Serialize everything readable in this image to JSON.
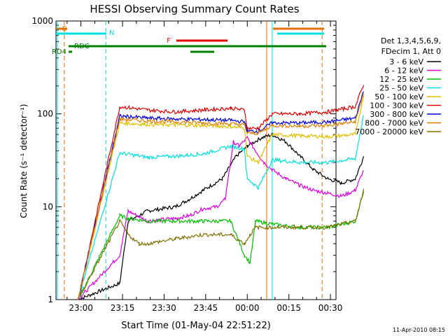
{
  "chart_data": {
    "type": "line",
    "title": "HESSI Observing Summary Count Rates",
    "xlabel": "Start Time (01-May-04 22:51:22)",
    "ylabel": "Count Rate (s⁻¹ detector⁻¹)",
    "y_scale": "log",
    "ylim": [
      1,
      1000
    ],
    "xlim": [
      "22:51",
      "00:32"
    ],
    "x_ticks": [
      "23:00",
      "23:15",
      "23:30",
      "23:45",
      "00:00",
      "00:15",
      "00:30"
    ],
    "y_ticks": [
      "1",
      "10",
      "100",
      "1000"
    ],
    "footer": "11-Apr-2010 08:15",
    "legend": {
      "header": [
        "Det 1,3,4,5,6,9,",
        "FDecim 1, Att 0"
      ],
      "placement": "right"
    },
    "series": [
      {
        "name": "3 - 6 keV",
        "color": "#000000",
        "points": [
          [
            0,
            1
          ],
          [
            15,
            1.5
          ],
          [
            18,
            7
          ],
          [
            25,
            9
          ],
          [
            35,
            10
          ],
          [
            40,
            12
          ],
          [
            45,
            15
          ],
          [
            52,
            20
          ],
          [
            57,
            35
          ],
          [
            61,
            45
          ],
          [
            66,
            55
          ],
          [
            70,
            60
          ],
          [
            75,
            50
          ],
          [
            80,
            35
          ],
          [
            85,
            25
          ],
          [
            90,
            20
          ],
          [
            95,
            18
          ],
          [
            100,
            20
          ],
          [
            103,
            35
          ]
        ]
      },
      {
        "name": "6 - 12 keV",
        "color": "#e000e0",
        "points": [
          [
            0,
            1
          ],
          [
            15,
            3
          ],
          [
            18,
            9
          ],
          [
            25,
            7
          ],
          [
            35,
            7.5
          ],
          [
            40,
            8
          ],
          [
            45,
            9.5
          ],
          [
            50,
            10
          ],
          [
            53,
            12
          ],
          [
            56,
            50
          ],
          [
            58,
            45
          ],
          [
            61,
            55
          ],
          [
            64,
            40
          ],
          [
            67,
            30
          ],
          [
            70,
            25
          ],
          [
            75,
            20
          ],
          [
            80,
            17
          ],
          [
            85,
            15
          ],
          [
            90,
            14
          ],
          [
            95,
            13
          ],
          [
            100,
            15
          ],
          [
            103,
            25
          ]
        ]
      },
      {
        "name": "12 - 25 keV",
        "color": "#00c000",
        "points": [
          [
            0,
            1
          ],
          [
            15,
            8
          ],
          [
            18,
            7.5
          ],
          [
            25,
            7
          ],
          [
            35,
            7
          ],
          [
            45,
            7
          ],
          [
            55,
            7
          ],
          [
            60,
            3
          ],
          [
            62,
            2.5
          ],
          [
            64,
            7
          ],
          [
            70,
            6.5
          ],
          [
            80,
            6
          ],
          [
            90,
            6
          ],
          [
            100,
            7
          ],
          [
            103,
            15
          ]
        ]
      },
      {
        "name": "25 - 50 keV",
        "color": "#00e0e0",
        "points": [
          [
            0,
            1
          ],
          [
            15,
            38
          ],
          [
            25,
            34
          ],
          [
            35,
            35
          ],
          [
            45,
            37
          ],
          [
            55,
            45
          ],
          [
            60,
            42
          ],
          [
            61,
            20
          ],
          [
            63,
            18
          ],
          [
            65,
            16
          ],
          [
            70,
            32
          ],
          [
            80,
            30
          ],
          [
            90,
            30
          ],
          [
            100,
            33
          ],
          [
            103,
            100
          ]
        ]
      },
      {
        "name": "50 - 100 keV",
        "color": "#e0c000",
        "points": [
          [
            0,
            1
          ],
          [
            15,
            80
          ],
          [
            25,
            77
          ],
          [
            35,
            76
          ],
          [
            45,
            75
          ],
          [
            55,
            73
          ],
          [
            60,
            70
          ],
          [
            61,
            35
          ],
          [
            65,
            30
          ],
          [
            70,
            60
          ],
          [
            80,
            58
          ],
          [
            90,
            57
          ],
          [
            100,
            60
          ],
          [
            103,
            160
          ]
        ]
      },
      {
        "name": "100 - 300 keV",
        "color": "#e00000",
        "points": [
          [
            0,
            1
          ],
          [
            15,
            120
          ],
          [
            25,
            110
          ],
          [
            35,
            105
          ],
          [
            45,
            110
          ],
          [
            55,
            115
          ],
          [
            60,
            110
          ],
          [
            61,
            70
          ],
          [
            65,
            70
          ],
          [
            70,
            100
          ],
          [
            80,
            100
          ],
          [
            90,
            105
          ],
          [
            100,
            120
          ],
          [
            103,
            210
          ]
        ]
      },
      {
        "name": "300 - 800 keV",
        "color": "#0000e0",
        "points": [
          [
            0,
            1
          ],
          [
            15,
            95
          ],
          [
            25,
            90
          ],
          [
            35,
            88
          ],
          [
            45,
            87
          ],
          [
            55,
            85
          ],
          [
            60,
            82
          ],
          [
            61,
            65
          ],
          [
            65,
            65
          ],
          [
            70,
            80
          ],
          [
            80,
            80
          ],
          [
            90,
            82
          ],
          [
            100,
            90
          ],
          [
            103,
            180
          ]
        ]
      },
      {
        "name": "800 - 7000 keV",
        "color": "#e08000",
        "points": [
          [
            0,
            1
          ],
          [
            15,
            88
          ],
          [
            25,
            84
          ],
          [
            35,
            82
          ],
          [
            45,
            80
          ],
          [
            55,
            78
          ],
          [
            60,
            76
          ],
          [
            61,
            62
          ],
          [
            65,
            62
          ],
          [
            70,
            75
          ],
          [
            80,
            74
          ],
          [
            90,
            75
          ],
          [
            100,
            82
          ],
          [
            103,
            170
          ]
        ]
      },
      {
        "name": "7000 - 20000 keV",
        "color": "#807000",
        "points": [
          [
            0,
            1
          ],
          [
            15,
            7
          ],
          [
            18,
            5
          ],
          [
            22,
            4
          ],
          [
            25,
            4
          ],
          [
            35,
            4.5
          ],
          [
            45,
            5
          ],
          [
            55,
            5
          ],
          [
            60,
            4
          ],
          [
            62,
            5
          ],
          [
            64,
            6
          ],
          [
            70,
            6
          ],
          [
            80,
            6
          ],
          [
            90,
            6
          ],
          [
            100,
            7
          ],
          [
            103,
            15
          ]
        ]
      }
    ],
    "flags": [
      {
        "label": "S",
        "color": "#e07000"
      },
      {
        "label": "N",
        "color": "#00e0e0"
      },
      {
        "label": "F",
        "color": "#e00000"
      },
      {
        "label": "RD4",
        "color": "#008000"
      },
      {
        "label": "RDC",
        "color": "#008000"
      }
    ]
  }
}
